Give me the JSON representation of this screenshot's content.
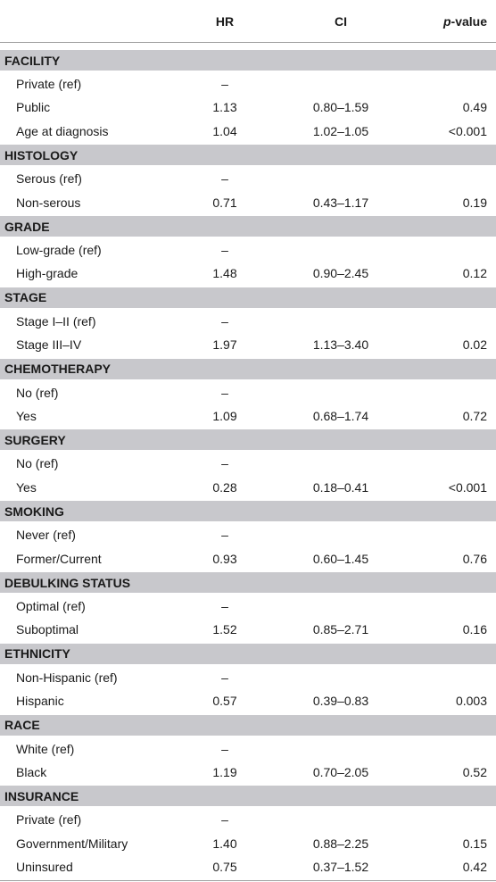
{
  "header": {
    "hr": "HR",
    "ci": "CI",
    "p_italic": "p",
    "p_rest": "-value"
  },
  "sections": [
    {
      "title": "FACILITY",
      "rows": [
        {
          "label": "Private (ref)",
          "hr": "–",
          "ci": "",
          "p": ""
        },
        {
          "label": "Public",
          "hr": "1.13",
          "ci": "0.80–1.59",
          "p": "0.49"
        },
        {
          "label": "Age at diagnosis",
          "hr": "1.04",
          "ci": "1.02–1.05",
          "p": "<0.001"
        }
      ]
    },
    {
      "title": "HISTOLOGY",
      "rows": [
        {
          "label": "Serous (ref)",
          "hr": "–",
          "ci": "",
          "p": ""
        },
        {
          "label": "Non-serous",
          "hr": "0.71",
          "ci": "0.43–1.17",
          "p": "0.19"
        }
      ]
    },
    {
      "title": "GRADE",
      "rows": [
        {
          "label": "Low-grade (ref)",
          "hr": "–",
          "ci": "",
          "p": ""
        },
        {
          "label": "High-grade",
          "hr": "1.48",
          "ci": "0.90–2.45",
          "p": "0.12"
        }
      ]
    },
    {
      "title": "STAGE",
      "rows": [
        {
          "label": "Stage I–II (ref)",
          "hr": "–",
          "ci": "",
          "p": ""
        },
        {
          "label": "Stage III–IV",
          "hr": "1.97",
          "ci": "1.13–3.40",
          "p": "0.02"
        }
      ]
    },
    {
      "title": "CHEMOTHERAPY",
      "rows": [
        {
          "label": "No (ref)",
          "hr": "–",
          "ci": "",
          "p": ""
        },
        {
          "label": "Yes",
          "hr": "1.09",
          "ci": "0.68–1.74",
          "p": "0.72"
        }
      ]
    },
    {
      "title": "SURGERY",
      "rows": [
        {
          "label": "No (ref)",
          "hr": "–",
          "ci": "",
          "p": ""
        },
        {
          "label": "Yes",
          "hr": "0.28",
          "ci": "0.18–0.41",
          "p": "<0.001"
        }
      ]
    },
    {
      "title": "SMOKING",
      "rows": [
        {
          "label": "Never (ref)",
          "hr": "–",
          "ci": "",
          "p": ""
        },
        {
          "label": "Former/Current",
          "hr": "0.93",
          "ci": "0.60–1.45",
          "p": "0.76"
        }
      ]
    },
    {
      "title": "DEBULKING STATUS",
      "rows": [
        {
          "label": "Optimal (ref)",
          "hr": "–",
          "ci": "",
          "p": ""
        },
        {
          "label": "Suboptimal",
          "hr": "1.52",
          "ci": "0.85–2.71",
          "p": "0.16"
        }
      ]
    },
    {
      "title": "ETHNICITY",
      "rows": [
        {
          "label": "Non-Hispanic (ref)",
          "hr": "–",
          "ci": "",
          "p": ""
        },
        {
          "label": "Hispanic",
          "hr": "0.57",
          "ci": "0.39–0.83",
          "p": "0.003"
        }
      ]
    },
    {
      "title": "RACE",
      "rows": [
        {
          "label": "White (ref)",
          "hr": "–",
          "ci": "",
          "p": ""
        },
        {
          "label": "Black",
          "hr": "1.19",
          "ci": "0.70–2.05",
          "p": "0.52"
        }
      ]
    },
    {
      "title": "INSURANCE",
      "rows": [
        {
          "label": "Private (ref)",
          "hr": "–",
          "ci": "",
          "p": ""
        },
        {
          "label": "Government/Military",
          "hr": "1.40",
          "ci": "0.88–2.25",
          "p": "0.15"
        },
        {
          "label": "Uninsured",
          "hr": "0.75",
          "ci": "0.37–1.52",
          "p": "0.42"
        }
      ]
    }
  ]
}
